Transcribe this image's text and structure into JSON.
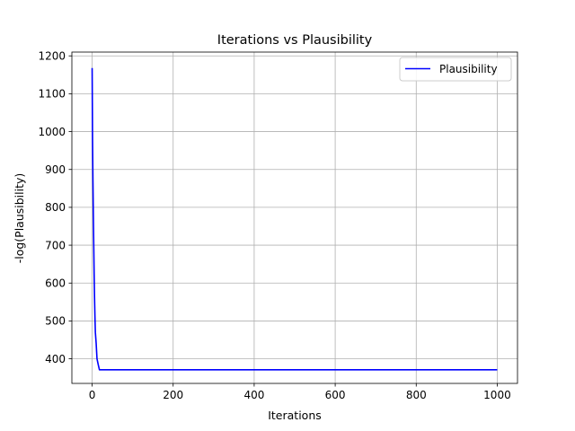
{
  "chart_data": {
    "type": "line",
    "title": "Iterations vs Plausibility",
    "xlabel": "Iterations",
    "ylabel": "-log(Plausibility)",
    "xlim": [
      -50,
      1050
    ],
    "ylim": [
      335,
      1210
    ],
    "xticks": [
      0,
      200,
      400,
      600,
      800,
      1000
    ],
    "yticks": [
      400,
      500,
      600,
      700,
      800,
      900,
      1000,
      1100,
      1200
    ],
    "grid": true,
    "legend_position": "top-right",
    "series": [
      {
        "name": "Plausibility",
        "color": "#0000ff",
        "x": [
          0,
          1,
          2,
          3,
          4,
          5,
          6,
          7,
          8,
          10,
          12,
          15,
          18,
          25,
          50,
          100,
          200,
          300,
          400,
          500,
          600,
          700,
          800,
          900,
          1000
        ],
        "y": [
          1168,
          980,
          870,
          780,
          700,
          620,
          560,
          510,
          470,
          440,
          400,
          385,
          371,
          371,
          371,
          371,
          371,
          371,
          371,
          371,
          371,
          371,
          371,
          371,
          371
        ]
      }
    ]
  }
}
